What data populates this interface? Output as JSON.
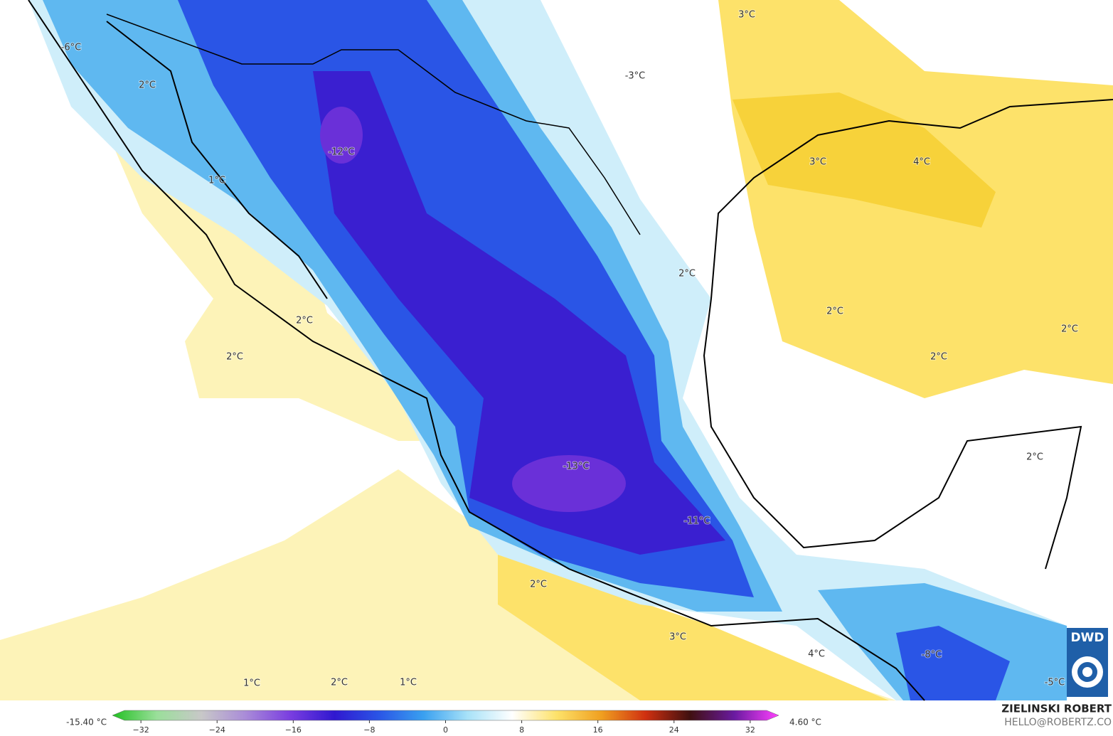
{
  "map_labels": [
    "-6°C",
    "2°C",
    "1°C",
    "-12°C",
    "3°C",
    "-3°C",
    "3°C",
    "4°C",
    "2°C",
    "2°C",
    "2°C",
    "2°C",
    "2°C",
    "2°C",
    "2°C",
    "-13°C",
    "-11°C",
    "2°C",
    "3°C",
    "4°C",
    "-8°C",
    "-5°C",
    "1°C",
    "2°C",
    "1°C"
  ],
  "colorbar": {
    "min_label": "-15.40 °C",
    "max_label": "4.60 °C",
    "range": [
      -35,
      35
    ],
    "ticks": [
      {
        "value": -32,
        "label": "−32"
      },
      {
        "value": -24,
        "label": "−24"
      },
      {
        "value": -16,
        "label": "−16"
      },
      {
        "value": -8,
        "label": "−8"
      },
      0,
      8,
      16,
      24,
      32
    ],
    "colors": [
      "#22c022",
      "#9adf9a",
      "#c8c8c8",
      "#a98bd8",
      "#7a3ee0",
      "#3018d0",
      "#2a55e6",
      "#39a0f0",
      "#a8e2f8",
      "#ffffff",
      "#fde26a",
      "#f0a020",
      "#d03010",
      "#401010",
      "#6a1aa0",
      "#ff40ff"
    ]
  },
  "credit": {
    "author": "ZIELINSKI ROBERT",
    "email": "HELLO@ROBERTZ.CO",
    "logo": "DWD"
  }
}
